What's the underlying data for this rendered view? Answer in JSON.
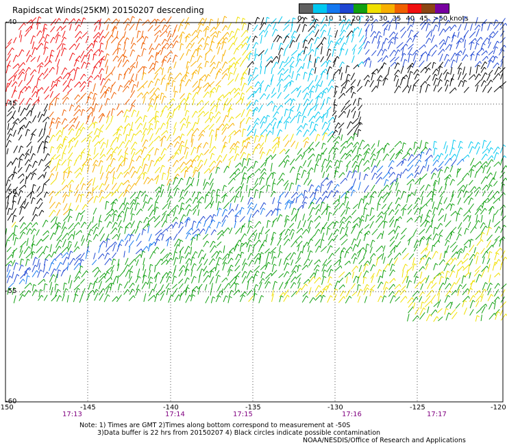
{
  "title": "Rapidscat Winds(25KM) 20150207 descending",
  "colorbar": {
    "labels": [
      "0",
      "5",
      "10",
      "15",
      "20",
      "25",
      "30",
      "35",
      "40",
      "45",
      ">50 knots"
    ],
    "colors": [
      "#606060",
      "#00c8f0",
      "#1478f0",
      "#1e46d2",
      "#10a010",
      "#f0e000",
      "#f8b000",
      "#f06000",
      "#f01010",
      "#8b4513",
      "#7800a0"
    ]
  },
  "map": {
    "lat_labels": [
      "-40",
      "-45",
      "-50",
      "-55",
      "-60"
    ],
    "lon_labels": [
      "-150",
      "-145",
      "-140",
      "-135",
      "-130",
      "-125",
      "-120"
    ],
    "time_labels": [
      "17:13",
      "17:14",
      "17:15",
      "17:16",
      "17:17"
    ]
  },
  "notes": {
    "line1": "Note: 1) Times are GMT 2)Times along bottom correspond to measurement at -50S",
    "line2": "3)Data buffer is 22 hrs from 20150207 4) Black circles indicate possible contamination",
    "credit": "NOAA/NESDIS/Office of Research and Applications"
  }
}
